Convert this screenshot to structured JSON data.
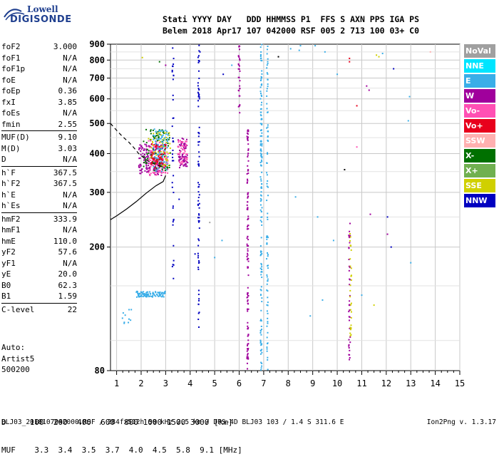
{
  "logo": {
    "line1": "Lowell",
    "line2": "DIGISONDE"
  },
  "header": {
    "labels": "Stati YYYY DAY   DDD HHMMSS P1  FFS S AXN PPS IGA PS",
    "values": "Belem 2018 Apr17 107 042000 RSF 005 2 713 100 03+ C0"
  },
  "params": {
    "group1": [
      {
        "k": "foF2",
        "v": "3.000"
      },
      {
        "k": "foF1",
        "v": "N/A"
      },
      {
        "k": "foF1p",
        "v": "N/A"
      },
      {
        "k": "foE",
        "v": "N/A"
      },
      {
        "k": "foEp",
        "v": "0.36"
      },
      {
        "k": "fxI",
        "v": "3.85"
      },
      {
        "k": "foEs",
        "v": "N/A"
      },
      {
        "k": "fmin",
        "v": "2.55"
      }
    ],
    "group2": [
      {
        "k": "MUF(D)",
        "v": "9.10"
      },
      {
        "k": "M(D)",
        "v": "3.03"
      },
      {
        "k": "D",
        "v": "N/A"
      }
    ],
    "group3": [
      {
        "k": "h`F",
        "v": "367.5"
      },
      {
        "k": "h`F2",
        "v": "367.5"
      },
      {
        "k": "h`E",
        "v": "N/A"
      },
      {
        "k": "h`Es",
        "v": "N/A"
      }
    ],
    "group4": [
      {
        "k": "hmF2",
        "v": "333.9"
      },
      {
        "k": "hmF1",
        "v": "N/A"
      },
      {
        "k": "hmE",
        "v": "110.0"
      },
      {
        "k": "yF2",
        "v": "57.6"
      },
      {
        "k": "yF1",
        "v": "N/A"
      },
      {
        "k": "yE",
        "v": "20.0"
      },
      {
        "k": "B0",
        "v": "62.3"
      },
      {
        "k": "B1",
        "v": "1.59"
      }
    ],
    "group5": [
      {
        "k": "C-level",
        "v": "22"
      }
    ]
  },
  "autoscaling": {
    "line1": "Auto:",
    "line2": "Artist5",
    "line3": "500200"
  },
  "legend": [
    {
      "label": "NoVal",
      "color": "#a0a0a0"
    },
    {
      "label": "NNE",
      "color": "#00e5ff"
    },
    {
      "label": "E",
      "color": "#3aaee8"
    },
    {
      "label": "W",
      "color": "#a0009c"
    },
    {
      "label": "Vo-",
      "color": "#ff50b4"
    },
    {
      "label": "Vo+",
      "color": "#e8001c"
    },
    {
      "label": "SSW",
      "color": "#ffb0b0"
    },
    {
      "label": "X-",
      "color": "#007000"
    },
    {
      "label": "X+",
      "color": "#70b050"
    },
    {
      "label": "SSE",
      "color": "#d0d000"
    },
    {
      "label": "NNW",
      "color": "#0000c0"
    }
  ],
  "muf_table": {
    "d_row": "D     100  200  400  600  800 1000 1500 3000 [km]",
    "muf_row": "MUF    3.3  3.4  3.5  3.7  4.0  4.5  5.8  9.1 [MHz]"
  },
  "footer": "BLJ03_2018107042000.RSF / 284fx512h 50 kHz 2.5 km / DPS-4D BLJ03 103 / 1.4 S 311.6 E",
  "version": "Ion2Png v. 1.3.17",
  "chart_data": {
    "type": "scatter",
    "xlabel": "",
    "ylabel": "",
    "xlim": [
      0.75,
      15
    ],
    "ylim": [
      80,
      900
    ],
    "x_ticks": [
      1,
      2,
      3,
      4,
      5,
      6,
      7,
      8,
      9,
      10,
      11,
      12,
      13,
      14,
      15
    ],
    "y_ticks": [
      80,
      200,
      300,
      400,
      500,
      600,
      700,
      800,
      900
    ],
    "y_scale": "log",
    "grid": true,
    "profile_curve": {
      "x": [
        0.75,
        1.0,
        1.4,
        1.8,
        2.2,
        2.6,
        2.9,
        3.0
      ],
      "y": [
        245,
        252,
        265,
        280,
        298,
        315,
        325,
        340
      ]
    },
    "dashed_curve": {
      "x": [
        0.75,
        1.0,
        1.2,
        1.5,
        1.7,
        1.9,
        2.1,
        2.3,
        2.6,
        2.9
      ],
      "y": [
        500,
        475,
        457,
        435,
        418,
        400,
        388,
        378,
        368,
        362
      ]
    },
    "echo_clusters": [
      {
        "color": "#a0009c",
        "x": [
          1.9,
          2.9
        ],
        "y": [
          340,
          430
        ],
        "n": 160
      },
      {
        "color": "#ff50b4",
        "x": [
          2.3,
          3.1
        ],
        "y": [
          340,
          440
        ],
        "n": 120
      },
      {
        "color": "#007000",
        "x": [
          2.1,
          3.2
        ],
        "y": [
          350,
          480
        ],
        "n": 90
      },
      {
        "color": "#d0d000",
        "x": [
          2.3,
          3.2
        ],
        "y": [
          360,
          470
        ],
        "n": 60
      },
      {
        "color": "#3aaee8",
        "x": [
          2.5,
          3.1
        ],
        "y": [
          350,
          480
        ],
        "n": 90
      },
      {
        "color": "#e8001c",
        "x": [
          2.4,
          3.0
        ],
        "y": [
          360,
          430
        ],
        "n": 50
      },
      {
        "color": "#a0009c",
        "x": [
          3.5,
          3.9
        ],
        "y": [
          360,
          450
        ],
        "n": 70
      },
      {
        "color": "#ff50b4",
        "x": [
          3.5,
          3.9
        ],
        "y": [
          370,
          440
        ],
        "n": 40
      },
      {
        "color": "#3aaee8",
        "x": [
          1.8,
          3.0
        ],
        "y": [
          138,
          144
        ],
        "n": 90
      },
      {
        "color": "#3aaee8",
        "x": [
          1.1,
          1.6
        ],
        "y": [
          112,
          126
        ],
        "n": 10
      }
    ],
    "echo_columns": [
      {
        "color": "#0000c0",
        "x": 4.35,
        "y": [
          110,
          900
        ],
        "n": 80
      },
      {
        "color": "#a0009c",
        "x": 6.35,
        "y": [
          80,
          480
        ],
        "n": 120
      },
      {
        "color": "#a0009c",
        "x": 6.0,
        "y": [
          540,
          890
        ],
        "n": 30
      },
      {
        "color": "#3aaee8",
        "x": 6.9,
        "y": [
          80,
          900
        ],
        "n": 150
      },
      {
        "color": "#3aaee8",
        "x": 7.15,
        "y": [
          80,
          900
        ],
        "n": 90
      },
      {
        "color": "#0000c0",
        "x": 3.3,
        "y": [
          150,
          900
        ],
        "n": 40
      },
      {
        "color": "#a0009c",
        "x": 10.5,
        "y": [
          85,
          240
        ],
        "n": 40
      },
      {
        "color": "#d0d000",
        "x": 10.55,
        "y": [
          100,
          230
        ],
        "n": 30
      }
    ],
    "scattered_points": [
      {
        "x": 2.05,
        "y": 815,
        "c": "#d0d000"
      },
      {
        "x": 2.75,
        "y": 790,
        "c": "#007000"
      },
      {
        "x": 3.0,
        "y": 770,
        "c": "#a0009c"
      },
      {
        "x": 4.4,
        "y": 850,
        "c": "#0000c0"
      },
      {
        "x": 5.35,
        "y": 720,
        "c": "#0000c0"
      },
      {
        "x": 5.7,
        "y": 770,
        "c": "#3aaee8"
      },
      {
        "x": 5.3,
        "y": 210,
        "c": "#3aaee8"
      },
      {
        "x": 5.0,
        "y": 185,
        "c": "#3aaee8"
      },
      {
        "x": 4.2,
        "y": 190,
        "c": "#0000c0"
      },
      {
        "x": 7.6,
        "y": 820,
        "c": "#000000"
      },
      {
        "x": 8.1,
        "y": 870,
        "c": "#3aaee8"
      },
      {
        "x": 8.5,
        "y": 890,
        "c": "#3aaee8"
      },
      {
        "x": 9.1,
        "y": 890,
        "c": "#3aaee8"
      },
      {
        "x": 9.5,
        "y": 850,
        "c": "#3aaee8"
      },
      {
        "x": 10.0,
        "y": 720,
        "c": "#3aaee8"
      },
      {
        "x": 10.5,
        "y": 810,
        "c": "#e8001c"
      },
      {
        "x": 10.5,
        "y": 790,
        "c": "#e8001c"
      },
      {
        "x": 10.8,
        "y": 570,
        "c": "#e8001c"
      },
      {
        "x": 10.8,
        "y": 420,
        "c": "#ff50b4"
      },
      {
        "x": 11.2,
        "y": 660,
        "c": "#a0009c"
      },
      {
        "x": 11.3,
        "y": 640,
        "c": "#a0009c"
      },
      {
        "x": 11.35,
        "y": 255,
        "c": "#a0009c"
      },
      {
        "x": 11.6,
        "y": 830,
        "c": "#d0d000"
      },
      {
        "x": 11.7,
        "y": 820,
        "c": "#d0d000"
      },
      {
        "x": 11.85,
        "y": 840,
        "c": "#3aaee8"
      },
      {
        "x": 12.05,
        "y": 250,
        "c": "#0000c0"
      },
      {
        "x": 12.05,
        "y": 220,
        "c": "#a0009c"
      },
      {
        "x": 12.2,
        "y": 200,
        "c": "#0000c0"
      },
      {
        "x": 12.3,
        "y": 750,
        "c": "#0000c0"
      },
      {
        "x": 12.95,
        "y": 610,
        "c": "#3aaee8"
      },
      {
        "x": 13.0,
        "y": 178,
        "c": "#3aaee8"
      },
      {
        "x": 13.8,
        "y": 850,
        "c": "#ffb0b0"
      },
      {
        "x": 12.9,
        "y": 510,
        "c": "#3aaee8"
      },
      {
        "x": 9.2,
        "y": 250,
        "c": "#3aaee8"
      },
      {
        "x": 9.85,
        "y": 210,
        "c": "#3aaee8"
      },
      {
        "x": 8.3,
        "y": 290,
        "c": "#3aaee8"
      },
      {
        "x": 8.9,
        "y": 120,
        "c": "#3aaee8"
      },
      {
        "x": 9.4,
        "y": 135,
        "c": "#3aaee8"
      },
      {
        "x": 11.0,
        "y": 140,
        "c": "#3aaee8"
      },
      {
        "x": 11.5,
        "y": 130,
        "c": "#d0d000"
      },
      {
        "x": 10.3,
        "y": 355,
        "c": "#000000"
      },
      {
        "x": 8.45,
        "y": 860,
        "c": "#3aaee8"
      },
      {
        "x": 4.8,
        "y": 240,
        "c": "#a0a0a0"
      },
      {
        "x": 3.55,
        "y": 285,
        "c": "#0000c0"
      }
    ]
  }
}
